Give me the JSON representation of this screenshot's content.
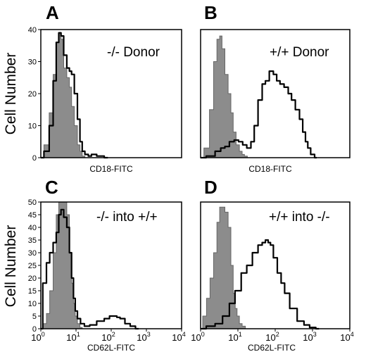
{
  "y_axis_label_top": "Cell Number",
  "y_axis_label_bottom": "Cell Number",
  "chart_data": [
    {
      "type": "area",
      "panel": "A",
      "annotation": "-/- Donor",
      "xlabel": "CD18-FITC",
      "x_scale": "log",
      "xlim": [
        1,
        10000
      ],
      "ylim": [
        0,
        40
      ],
      "yticks": [
        0,
        10,
        20,
        30,
        40
      ],
      "x_tick_labels_shown": false,
      "series": [
        {
          "role": "control (filled gray)",
          "x": [
            1,
            1.5,
            2,
            2.5,
            3,
            3.5,
            4,
            5,
            6,
            7,
            8,
            10,
            12,
            14,
            16,
            20
          ],
          "y": [
            0,
            4,
            14,
            26,
            36,
            39,
            37,
            28,
            25,
            22,
            16,
            10,
            4,
            2,
            0.5,
            0
          ]
        },
        {
          "role": "sample (black line)",
          "x": [
            1,
            1.5,
            2,
            2.5,
            3,
            3.5,
            4,
            5,
            6,
            7,
            8,
            10,
            12,
            14,
            16,
            20,
            25,
            30,
            50,
            80
          ],
          "y": [
            0,
            2,
            10,
            24,
            36,
            39,
            38,
            32,
            28,
            27,
            26,
            20,
            12,
            5,
            2,
            1,
            0.5,
            1,
            0.5,
            0
          ]
        }
      ]
    },
    {
      "type": "area",
      "panel": "B",
      "annotation": "+/+ Donor",
      "xlabel": "CD18-FITC",
      "x_scale": "log",
      "xlim": [
        1,
        10000
      ],
      "ylim": [
        0,
        40
      ],
      "x_tick_labels_shown": false,
      "series": [
        {
          "role": "control (filled gray)",
          "x": [
            1,
            1.5,
            2,
            2.5,
            3,
            3.5,
            4,
            5,
            6,
            7,
            8,
            10,
            12,
            14,
            16,
            20
          ],
          "y": [
            0,
            3,
            15,
            30,
            37,
            38,
            34,
            26,
            20,
            14,
            8,
            4,
            2,
            1,
            0.5,
            0
          ]
        },
        {
          "role": "sample (black line)",
          "x": [
            1,
            2,
            3,
            4,
            5,
            7,
            9,
            12,
            15,
            20,
            25,
            30,
            40,
            50,
            60,
            80,
            100,
            120,
            150,
            200,
            250,
            300,
            400,
            500,
            600,
            700,
            800,
            1000,
            1300
          ],
          "y": [
            0,
            0.5,
            2,
            3,
            3.5,
            5,
            5.5,
            5,
            4,
            3,
            5,
            10,
            18,
            23,
            24,
            27,
            26,
            24,
            23,
            22,
            20,
            18,
            15,
            12,
            8,
            5,
            3,
            1,
            0
          ]
        }
      ]
    },
    {
      "type": "area",
      "panel": "C",
      "annotation": "-/- into +/+",
      "xlabel": "CD62L-FITC",
      "x_scale": "log",
      "xlim": [
        1,
        10000
      ],
      "ylim": [
        0,
        50
      ],
      "yticks": [
        0,
        5,
        10,
        15,
        20,
        25,
        30,
        35,
        40,
        45,
        50
      ],
      "x_tick_labels_shown": true,
      "xticks": [
        "10^0",
        "10^1",
        "10^2",
        "10^3",
        "10^4"
      ],
      "series": [
        {
          "role": "control (filled gray)",
          "x": [
            1,
            1.3,
            1.6,
            2,
            2.5,
            3,
            3.5,
            4,
            5,
            6,
            7,
            8,
            9,
            10,
            12,
            14,
            16
          ],
          "y": [
            0,
            2,
            6,
            15,
            30,
            45,
            50,
            50,
            50,
            45,
            30,
            18,
            10,
            5,
            2,
            0.5,
            0
          ]
        },
        {
          "role": "sample (black line)",
          "x": [
            1,
            1.3,
            1.6,
            2,
            2.5,
            3,
            3.5,
            4,
            5,
            6,
            7,
            8,
            9,
            10,
            12,
            15,
            20,
            30,
            50,
            80,
            100,
            130,
            160,
            200,
            300,
            400,
            600
          ],
          "y": [
            0,
            18,
            26,
            30,
            34,
            38,
            45,
            47,
            44,
            40,
            30,
            20,
            12,
            7,
            4,
            2,
            1,
            1.5,
            3,
            4,
            5,
            5,
            4.5,
            4,
            2,
            1,
            0
          ]
        }
      ]
    },
    {
      "type": "area",
      "panel": "D",
      "annotation": "+/+ into -/-",
      "xlabel": "CD62L-FITC",
      "x_scale": "log",
      "xlim": [
        1,
        10000
      ],
      "ylim": [
        0,
        50
      ],
      "x_tick_labels_shown": true,
      "xticks": [
        "10^0",
        "10^1",
        "10^2",
        "10^3",
        "10^4"
      ],
      "series": [
        {
          "role": "control (filled gray)",
          "x": [
            1,
            1.3,
            1.6,
            2,
            2.5,
            3,
            3.5,
            4,
            5,
            6,
            7,
            8,
            9,
            10,
            12,
            14,
            18
          ],
          "y": [
            0,
            5,
            12,
            20,
            30,
            42,
            48,
            48,
            46,
            40,
            25,
            14,
            8,
            5,
            2,
            1,
            0
          ]
        },
        {
          "role": "sample (black line)",
          "x": [
            1,
            2,
            3,
            5,
            7,
            10,
            15,
            20,
            30,
            40,
            50,
            60,
            70,
            80,
            100,
            130,
            160,
            200,
            300,
            500,
            700,
            1000,
            1500
          ],
          "y": [
            0,
            1,
            2,
            5,
            10,
            15,
            22,
            25,
            30,
            33,
            34,
            35,
            34,
            33,
            28,
            22,
            18,
            14,
            8,
            3,
            1.5,
            0.5,
            0
          ]
        }
      ]
    }
  ]
}
